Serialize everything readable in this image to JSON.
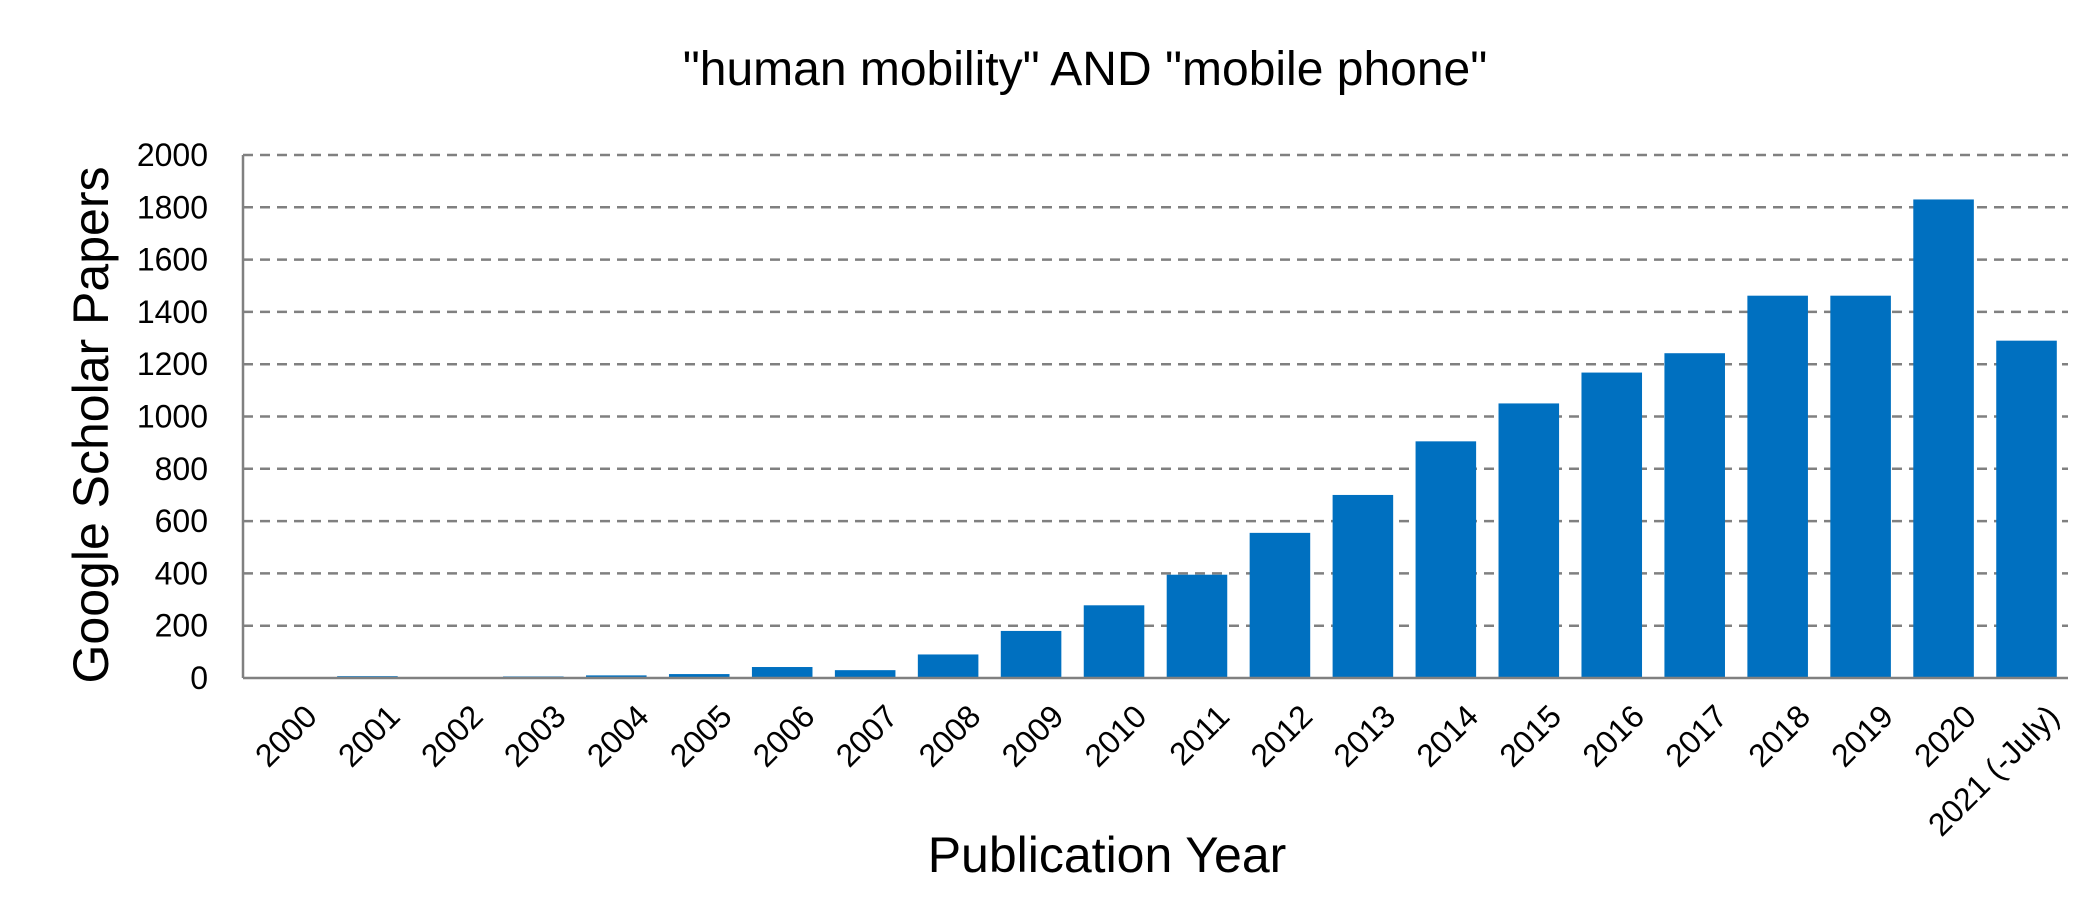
{
  "chart_data": {
    "type": "bar",
    "title": "\"human mobility\" AND \"mobile phone\"",
    "xlabel": "Publication Year",
    "ylabel": "Google Scholar Papers",
    "categories": [
      "2000",
      "2001",
      "2002",
      "2003",
      "2004",
      "2005",
      "2006",
      "2007",
      "2008",
      "2009",
      "2010",
      "2011",
      "2012",
      "2013",
      "2014",
      "2015",
      "2016",
      "2017",
      "2018",
      "2019",
      "2020",
      "2021 (-July)"
    ],
    "values": [
      2,
      7,
      3,
      6,
      10,
      15,
      42,
      30,
      90,
      180,
      278,
      395,
      555,
      700,
      905,
      1050,
      1168,
      1242,
      1462,
      1462,
      1830,
      1290
    ],
    "ylim": [
      0,
      2000
    ],
    "yticks": [
      0,
      200,
      400,
      600,
      800,
      1000,
      1200,
      1400,
      1600,
      1800,
      2000
    ],
    "grid": "horizontal dashed",
    "legend": "none",
    "bar_color": "#0070C0"
  }
}
